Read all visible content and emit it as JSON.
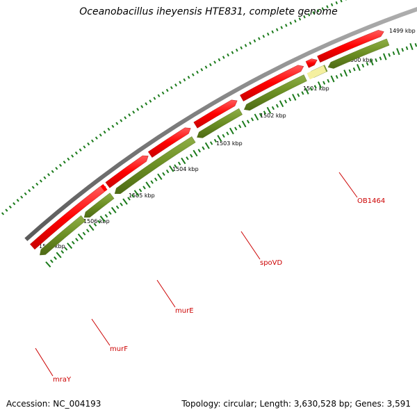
{
  "title": "Oceanobacillus iheyensis HTE831, complete genome",
  "footer": {
    "accession": "Accession: NC_004193",
    "stats": "Topology: circular; Length: 3,630,528 bp; Genes: 3,591"
  },
  "kbp_labels": [
    "1499 kbp",
    "1500 kbp",
    "1501 kbp",
    "1502 kbp",
    "1503 kbp",
    "1504 kbp",
    "1505 kbp",
    "1506 kbp",
    "1507 kbp"
  ],
  "gene_labels": [
    "OB1464",
    "spoVD",
    "murE",
    "murF",
    "mraY"
  ],
  "colors": {
    "backbone": "#8a8a8a",
    "cds_red": "#ff0000",
    "cds_green": "#6b8e23",
    "pale_feature": "#f5f0a0",
    "tick": "#1a7a1a",
    "label": "#cc0000"
  }
}
